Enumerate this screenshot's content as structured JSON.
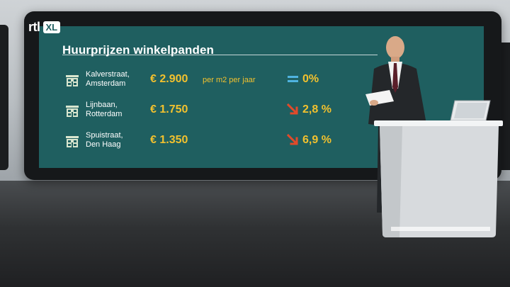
{
  "broadcast": {
    "logo": {
      "brand": "rtl",
      "suffix": "XL"
    }
  },
  "screen": {
    "title": "Huurprijzen winkelpanden",
    "rows": [
      {
        "place": "Kalverstraat,\nAmsterdam",
        "price": "€ 2.900",
        "unit": "per m2 per jaar",
        "change": "0%",
        "trend": "equal"
      },
      {
        "place": "Lijnbaan,\nRotterdam",
        "price": "€ 1.750",
        "unit": "",
        "change": "2,8 %",
        "trend": "down"
      },
      {
        "place": "Spuistraat,\nDen Haag",
        "price": "€ 1.350",
        "unit": "",
        "change": "6,9 %",
        "trend": "down"
      }
    ],
    "colors": {
      "background": "#1f5f60",
      "accent": "#f2c12e",
      "equal": "#4fb3e0",
      "down": "#e24a2a"
    },
    "icons": {
      "row": "shop-building-icon",
      "equal": "equals-icon",
      "down": "arrow-down-right-icon"
    }
  }
}
